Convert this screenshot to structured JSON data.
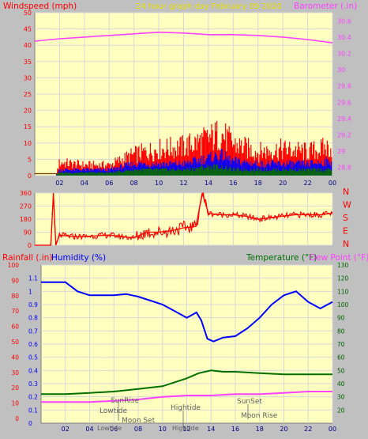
{
  "header": {
    "left_title": "Windspeed (mph)",
    "center_title": "24 hour graph day   February 09 2020",
    "right_title": "Barometer (.in)"
  },
  "colors": {
    "page_bg": "#c0c0c0",
    "plot_bg": "#ffffc0",
    "grid": "#d8d8d8",
    "red": "#ff0000",
    "magenta": "#ff40ff",
    "blue": "#0000ff",
    "green": "#007000",
    "dark_green": "#006000",
    "title_yellow": "#e8e000",
    "axis_text": "#000080"
  },
  "x_ticks": [
    "02",
    "04",
    "06",
    "08",
    "10",
    "12",
    "14",
    "16",
    "18",
    "20",
    "22",
    "00"
  ],
  "panel1": {
    "left_ticks": [
      "50",
      "45",
      "40",
      "35",
      "30",
      "25",
      "20",
      "15",
      "10",
      "5",
      "0"
    ],
    "right_ticks": [
      "30.6",
      "30.4",
      "30.2",
      "30",
      "29.8",
      "29.6",
      "29.4",
      "29.2",
      "29",
      "28.8"
    ],
    "chart_data": {
      "type": "line",
      "xlabel": "",
      "xlim": [
        0,
        24
      ],
      "ylim_left": [
        0,
        50
      ],
      "ylim_right": [
        28.7,
        30.7
      ],
      "series": [
        {
          "name": "Barometer (.in)",
          "axis": "right",
          "x": [
            0,
            2,
            4,
            6,
            8,
            10,
            12,
            14,
            16,
            18,
            20,
            22,
            24
          ],
          "y": [
            30.35,
            30.38,
            30.4,
            30.42,
            30.44,
            30.46,
            30.45,
            30.43,
            30.43,
            30.42,
            30.4,
            30.37,
            30.33
          ]
        },
        {
          "name": "Windgust",
          "axis": "left",
          "x": [
            0,
            1.7,
            2,
            4,
            6,
            8,
            10,
            12,
            14,
            15,
            16,
            18,
            20,
            22,
            24
          ],
          "y": [
            0,
            0,
            5,
            4,
            4,
            8,
            10,
            11,
            14,
            16,
            12,
            9,
            10,
            9,
            11
          ]
        },
        {
          "name": "Windspeed",
          "axis": "left",
          "x": [
            0,
            1.7,
            2,
            4,
            6,
            8,
            10,
            12,
            14,
            15,
            16,
            18,
            20,
            22,
            24
          ],
          "y": [
            0,
            0,
            2,
            2,
            2,
            4,
            4,
            4,
            6,
            7,
            5,
            4,
            4,
            4,
            5
          ]
        },
        {
          "name": "Wind average",
          "axis": "left",
          "x": [
            0,
            1.7,
            2,
            4,
            6,
            8,
            10,
            12,
            14,
            15,
            16,
            18,
            20,
            22,
            24
          ],
          "y": [
            0,
            0,
            1,
            1,
            1,
            2,
            2,
            2,
            3,
            3,
            2,
            2,
            2,
            2,
            2
          ]
        }
      ]
    }
  },
  "panel2": {
    "left_ticks": [
      "360",
      "270",
      "180",
      "90",
      "0"
    ],
    "right_letters": [
      "N",
      "W",
      "S",
      "E",
      "N"
    ],
    "chart_data": {
      "type": "line",
      "xlim": [
        0,
        24
      ],
      "ylim": [
        0,
        360
      ],
      "series": [
        {
          "name": "Wind direction",
          "x": [
            0,
            1.3,
            1.5,
            1.7,
            2,
            3,
            4,
            6,
            8,
            9,
            10,
            11,
            12,
            13,
            13.5,
            14,
            15,
            16,
            17,
            18,
            19,
            20,
            21,
            22,
            23,
            24
          ],
          "y": [
            0,
            0,
            360,
            0,
            70,
            60,
            60,
            70,
            50,
            90,
            90,
            100,
            120,
            130,
            360,
            220,
            210,
            210,
            200,
            180,
            190,
            200,
            210,
            210,
            210,
            220
          ]
        }
      ]
    }
  },
  "panel3": {
    "left_title": "Rainfall (.in)",
    "humidity_title": "Humidity (%)",
    "temp_title": "Temperature (°F)",
    "dew_title": "Dew Point (°F)",
    "rain_ticks": [
      "100",
      "90",
      "80",
      "70",
      "60",
      "50",
      "40",
      "30",
      "20",
      "10",
      "0"
    ],
    "hum_ticks": [
      "1.1",
      "1",
      "0.9",
      "0.8",
      "0.7",
      "0.6",
      "0.5",
      "0.4",
      "0.3",
      "0.2",
      "0.1",
      "0"
    ],
    "temp_ticks": [
      "130",
      "120",
      "110",
      "100",
      "90",
      "80",
      "70",
      "60",
      "50",
      "40",
      "30",
      "20"
    ],
    "annotations": {
      "sunrise": "SunRise",
      "lowtide": "Lowtide",
      "moonset": "Moon Set",
      "hightide": "Hightide",
      "sunset": "SunSet",
      "moonrise": "Moon Rise"
    },
    "bottom_labels": {
      "lowtide": "Lowtide",
      "hightide": "Hightide"
    },
    "chart_data": {
      "type": "line",
      "xlim": [
        0,
        24
      ],
      "ylim_rainfall": [
        0,
        100
      ],
      "ylim_humidity": [
        0,
        1.2
      ],
      "ylim_temperature": [
        10,
        130
      ],
      "series": [
        {
          "name": "Humidity (%)",
          "axis": "humidity",
          "x": [
            0,
            1,
            2,
            3,
            4,
            6,
            7,
            8,
            9,
            10,
            11,
            12,
            12.8,
            13.2,
            13.7,
            14.2,
            15,
            16,
            17,
            18,
            19,
            20,
            21,
            22,
            23,
            24
          ],
          "y": [
            1.07,
            1.07,
            1.07,
            1.0,
            0.97,
            0.97,
            0.98,
            0.96,
            0.93,
            0.9,
            0.85,
            0.8,
            0.84,
            0.78,
            0.64,
            0.62,
            0.65,
            0.66,
            0.72,
            0.8,
            0.9,
            0.97,
            1.0,
            0.92,
            0.87,
            0.92
          ]
        },
        {
          "name": "Temperature (°F)",
          "axis": "temperature",
          "x": [
            0,
            2,
            4,
            6,
            8,
            10,
            12,
            13,
            14,
            15,
            16,
            18,
            20,
            22,
            24
          ],
          "y": [
            32,
            32,
            33,
            34,
            36,
            38,
            44,
            48,
            50,
            49,
            49,
            48,
            47,
            47,
            47
          ]
        },
        {
          "name": "Dew Point (°F)",
          "axis": "temperature",
          "x": [
            0,
            2,
            4,
            6,
            8,
            10,
            12,
            14,
            16,
            18,
            20,
            22,
            24
          ],
          "y": [
            26,
            26,
            26,
            27,
            28,
            30,
            31,
            31,
            32,
            32,
            33,
            34,
            34
          ]
        }
      ]
    }
  }
}
